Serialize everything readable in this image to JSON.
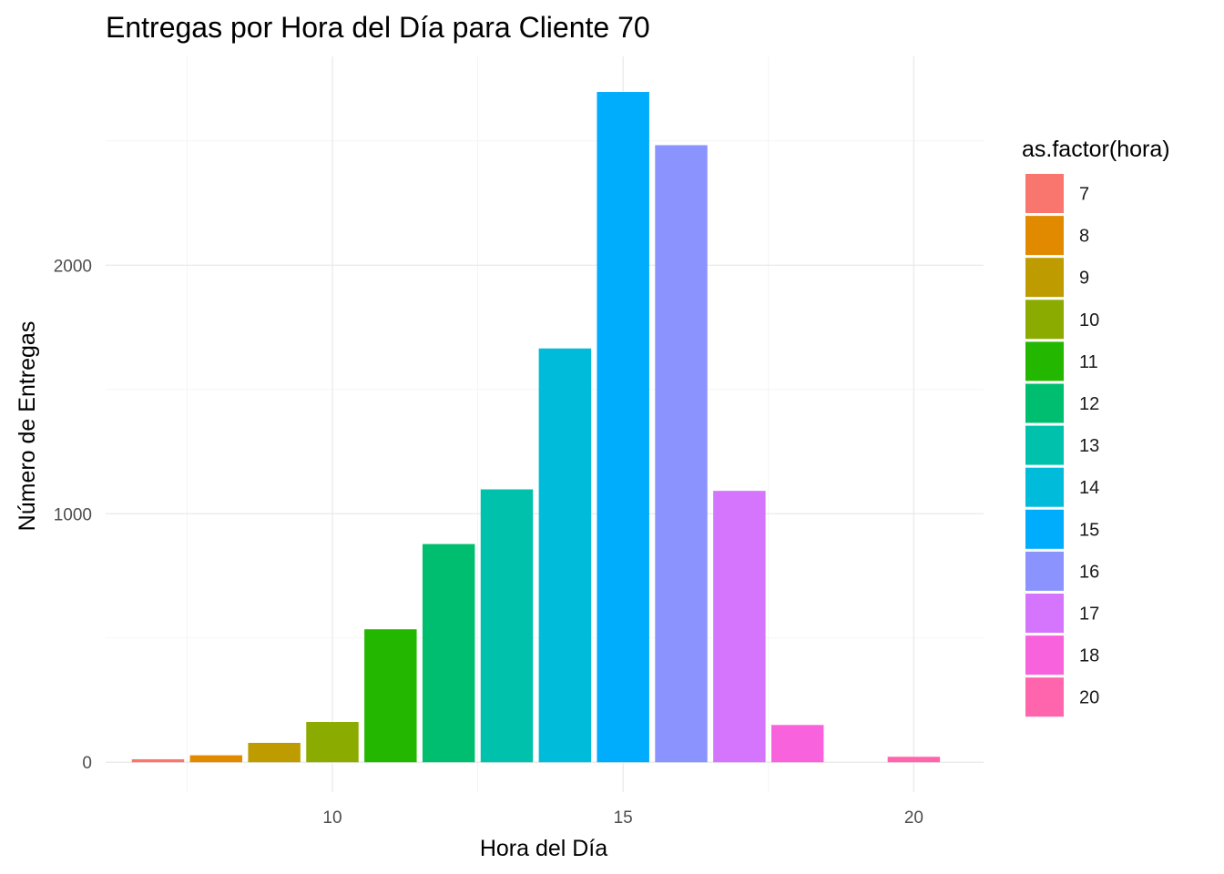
{
  "chart_data": {
    "type": "bar",
    "title": "Entregas por Hora del Día para Cliente 70",
    "xlabel": "Hora del Día",
    "ylabel": "Número de Entregas",
    "x": [
      7,
      8,
      9,
      10,
      11,
      12,
      13,
      14,
      15,
      16,
      17,
      18,
      20
    ],
    "values": [
      12,
      28,
      78,
      162,
      535,
      878,
      1098,
      1665,
      2697,
      2483,
      1092,
      150,
      22
    ],
    "colors": [
      "#F8766D",
      "#E18A00",
      "#BE9C00",
      "#8CAB00",
      "#24B700",
      "#00BE70",
      "#00C1AB",
      "#00BBDA",
      "#00ACFC",
      "#8B93FF",
      "#D575FE",
      "#F962DD",
      "#FF65AC"
    ],
    "xlim": [
      6.1,
      21.2
    ],
    "ylim": [
      -120,
      2840
    ],
    "x_ticks": [
      10,
      15,
      20
    ],
    "x_tick_labels": [
      "10",
      "15",
      "20"
    ],
    "y_ticks": [
      0,
      1000,
      2000
    ],
    "y_tick_labels": [
      "0",
      "1000",
      "2000"
    ],
    "bar_width": 0.9,
    "grid": true,
    "legend": {
      "title": "as.factor(hora)",
      "position": "right",
      "entries": [
        "7",
        "8",
        "9",
        "10",
        "11",
        "12",
        "13",
        "14",
        "15",
        "16",
        "17",
        "18",
        "20"
      ]
    }
  }
}
